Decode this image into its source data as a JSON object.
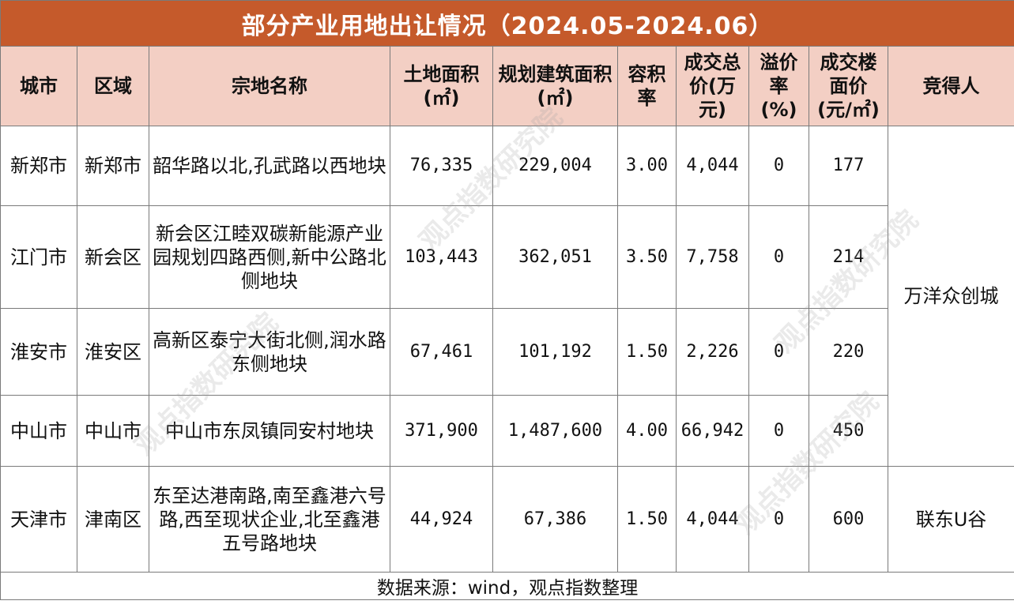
{
  "title": "部分产业用地出让情况（2024.05-2024.06）",
  "headers": [
    "城市",
    "区域",
    "宗地名称",
    "土地面积(㎡)",
    "规划建筑面积(㎡)",
    "容积率",
    "成交总价(万元)",
    "溢价率(%)",
    "成交楼面价(元/㎡)",
    "竞得人"
  ],
  "rows": [
    {
      "city": "新郑市",
      "district": "新郑市",
      "parcel": "韶华路以北,孔武路以西地块",
      "area": "76,335",
      "floor_area": "229,004",
      "far": "3.00",
      "total_price": "4,044",
      "premium": "0",
      "unit_price": "177"
    },
    {
      "city": "江门市",
      "district": "新会区",
      "parcel": "新会区江睦双碳新能源产业园规划四路西侧,新中公路北侧地块",
      "area": "103,443",
      "floor_area": "362,051",
      "far": "3.50",
      "total_price": "7,758",
      "premium": "0",
      "unit_price": "214"
    },
    {
      "city": "淮安市",
      "district": "淮安区",
      "parcel": "高新区泰宁大街北侧,润水路东侧地块",
      "area": "67,461",
      "floor_area": "101,192",
      "far": "1.50",
      "total_price": "2,226",
      "premium": "0",
      "unit_price": "220"
    },
    {
      "city": "中山市",
      "district": "中山市",
      "parcel": "中山市东凤镇同安村地块",
      "area": "371,900",
      "floor_area": "1,487,600",
      "far": "4.00",
      "total_price": "66,942",
      "premium": "0",
      "unit_price": "450"
    },
    {
      "city": "天津市",
      "district": "津南区",
      "parcel": "东至达港南路,南至鑫港六号路,西至现状企业,北至鑫港五号路地块",
      "area": "44,924",
      "floor_area": "67,386",
      "far": "1.50",
      "total_price": "4,044",
      "premium": "0",
      "unit_price": "600"
    }
  ],
  "buyers": {
    "group1": "万洋众创城",
    "group2": "联东U谷"
  },
  "footer": "数据来源：wind，观点指数整理",
  "watermark": "观点指数研究院",
  "colors": {
    "title_bg": "#c55a2b",
    "header_bg": "#f3cfc4",
    "border": "#7a7a7a"
  }
}
